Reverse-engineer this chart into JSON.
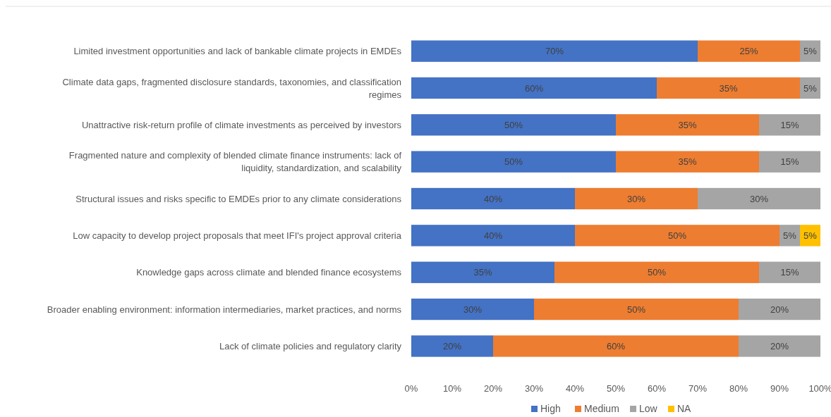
{
  "chart_data": {
    "type": "bar",
    "orientation": "horizontal",
    "stacked": true,
    "categories": [
      "Limited investment opportunities and lack of bankable climate projects in EMDEs",
      "Climate data gaps, fragmented disclosure standards, taxonomies, and classification regimes",
      "Unattractive risk-return profile of climate investments as perceived by investors",
      "Fragmented nature and complexity of blended climate finance instruments: lack of liquidity, standardization, and scalability",
      "Structural issues and risks specific to EMDEs prior to any climate considerations",
      "Low capacity to develop project proposals that meet IFI's project approval criteria",
      "Knowledge gaps across climate and blended finance ecosystems",
      "Broader enabling environment: information intermediaries, market practices, and norms",
      "Lack of climate policies and regulatory clarity"
    ],
    "series": [
      {
        "name": "High",
        "color": "#4472c4",
        "values": [
          70,
          60,
          50,
          50,
          40,
          40,
          35,
          30,
          20
        ],
        "value_labels": [
          "70%",
          "60%",
          "50%",
          "50%",
          "40%",
          "40%",
          "35%",
          "30%",
          "20%"
        ]
      },
      {
        "name": "Medium",
        "color": "#ed7d31",
        "values": [
          25,
          35,
          35,
          35,
          30,
          50,
          50,
          50,
          60
        ],
        "value_labels": [
          "25%",
          "35%",
          "35%",
          "35%",
          "30%",
          "50%",
          "50%",
          "50%",
          "60%"
        ]
      },
      {
        "name": "Low",
        "color": "#a5a5a5",
        "values": [
          5,
          5,
          15,
          15,
          30,
          5,
          15,
          20,
          20
        ],
        "value_labels": [
          "5%",
          "5%",
          "15%",
          "15%",
          "30%",
          "5%",
          "15%",
          "20%",
          "20%"
        ]
      },
      {
        "name": "NA",
        "color": "#ffc000",
        "values": [
          null,
          null,
          null,
          null,
          null,
          5,
          null,
          null,
          null
        ],
        "value_labels": [
          null,
          null,
          null,
          null,
          null,
          "5%",
          null,
          null,
          null
        ]
      }
    ],
    "xlim": [
      0,
      100
    ],
    "xticks": [
      {
        "value": 0,
        "label": "0%"
      },
      {
        "value": 10,
        "label": "10%"
      },
      {
        "value": 20,
        "label": "20%"
      },
      {
        "value": 30,
        "label": "30%"
      },
      {
        "value": 40,
        "label": "40%"
      },
      {
        "value": 50,
        "label": "50%"
      },
      {
        "value": 60,
        "label": "60%"
      },
      {
        "value": 70,
        "label": "70%"
      },
      {
        "value": 80,
        "label": "80%"
      },
      {
        "value": 90,
        "label": "90%"
      },
      {
        "value": 100,
        "label": "100%"
      }
    ],
    "legend": "bottom",
    "grid": false
  }
}
